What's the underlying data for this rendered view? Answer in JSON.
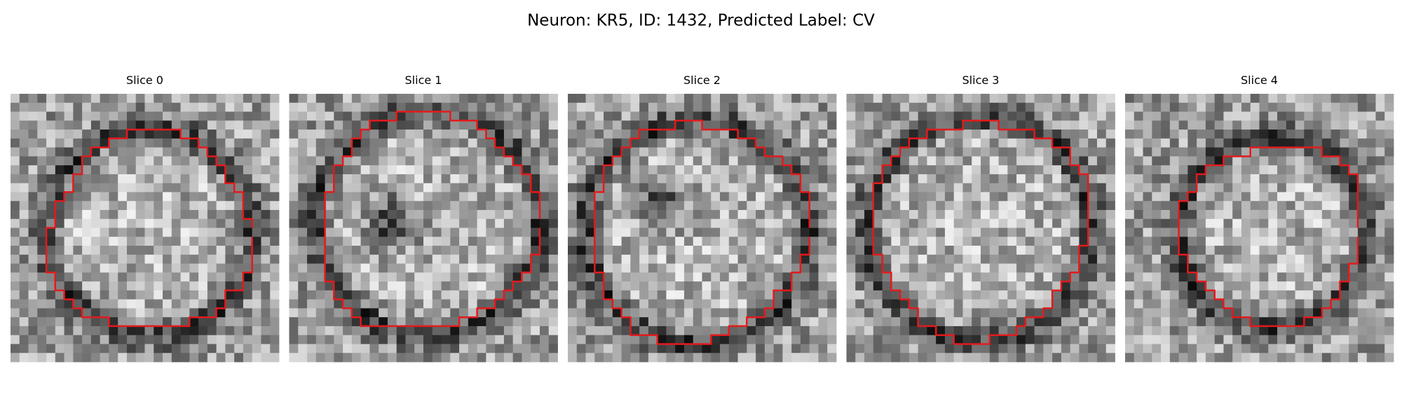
{
  "title": "Neuron: KR5, ID: 1432, Predicted Label: CV",
  "panels": [
    {
      "title": "Slice 0"
    },
    {
      "title": "Slice 1"
    },
    {
      "title": "Slice 2"
    },
    {
      "title": "Slice 3"
    },
    {
      "title": "Slice 4"
    }
  ]
}
